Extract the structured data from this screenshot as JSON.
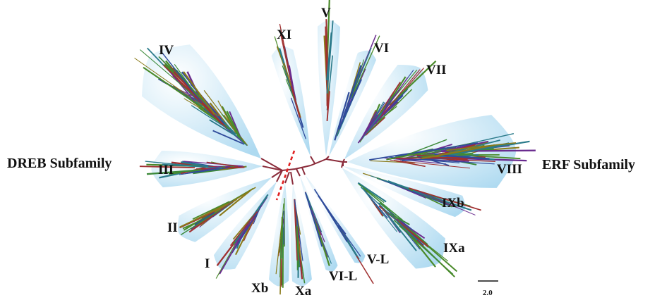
{
  "subfamilies": {
    "dreb": "DREB Subfamily",
    "erf": "ERF Subfamily"
  },
  "groups": {
    "I": "I",
    "II": "II",
    "III": "III",
    "IV": "IV",
    "V": "V",
    "VI": "VI",
    "VII": "VII",
    "VIII": "VIII",
    "IXa": "IXa",
    "IXb": "IXb",
    "Xa": "Xa",
    "Xb": "Xb",
    "XI": "XI",
    "VL": "V-L",
    "VIL": "VI-L"
  },
  "scale_bar": {
    "label": "2.0"
  },
  "colors": {
    "clade_fill_outer": "#9fd3ee",
    "clade_fill_inner": "#ffffff",
    "backbone": "#8a2b3a",
    "divider": "#e02020",
    "branches": [
      "#2f4b9b",
      "#6a2c8f",
      "#3d8a3a",
      "#8a7a1a",
      "#2a7a8a",
      "#a03030",
      "#4a8a2a"
    ]
  }
}
